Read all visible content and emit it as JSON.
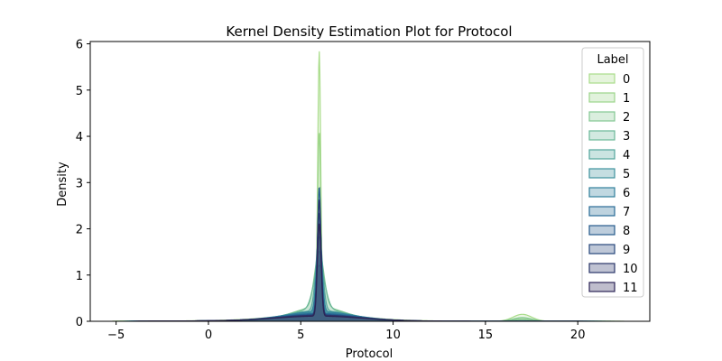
{
  "chart_data": {
    "type": "area",
    "title": "Kernel Density Estimation Plot for Protocol",
    "xlabel": "Protocol",
    "ylabel": "Density",
    "xlim": [
      -6.4,
      23.9
    ],
    "ylim": [
      0,
      6.05
    ],
    "xticks": [
      -5,
      0,
      5,
      10,
      15,
      20
    ],
    "yticks": [
      0,
      1,
      2,
      3,
      4,
      5,
      6
    ],
    "legend": {
      "title": "Label",
      "placement": "top-right"
    },
    "series": [
      {
        "name": "0",
        "color": "#a9dc8a",
        "peak": 5.73,
        "spike_width": 0.08,
        "broad_amp": 0.1,
        "broad_sigma": 2.6,
        "tcp": 0.15,
        "range": [
          -5.2,
          22.5
        ]
      },
      {
        "name": "1",
        "color": "#9bd48a",
        "peak": 3.95,
        "spike_width": 0.09,
        "broad_amp": 0.14,
        "broad_sigma": 2.3,
        "tcp": 0.05,
        "range": [
          -5.0,
          22.3
        ]
      },
      {
        "name": "2",
        "color": "#83c793",
        "peak": 1.2,
        "spike_width": 0.25,
        "broad_amp": 0.3,
        "broad_sigma": 1.4,
        "tcp": 0.08,
        "range": [
          -4.8,
          22.0
        ]
      },
      {
        "name": "3",
        "color": "#69b797",
        "peak": 0.95,
        "spike_width": 0.3,
        "broad_amp": 0.25,
        "broad_sigma": 1.6,
        "tcp": 0.02,
        "range": [
          -4.6,
          21.8
        ]
      },
      {
        "name": "4",
        "color": "#52a59b",
        "peak": 1.6,
        "spike_width": 0.18,
        "broad_amp": 0.22,
        "broad_sigma": 1.7,
        "tcp": 0.0,
        "range": [
          -4.5,
          21.5
        ]
      },
      {
        "name": "5",
        "color": "#3e929d",
        "peak": 2.1,
        "spike_width": 0.12,
        "broad_amp": 0.18,
        "broad_sigma": 2.0,
        "tcp": 0.0,
        "range": [
          -4.4,
          21.3
        ]
      },
      {
        "name": "6",
        "color": "#307f9b",
        "peak": 1.8,
        "spike_width": 0.14,
        "broad_amp": 0.2,
        "broad_sigma": 1.8,
        "tcp": 0.0,
        "range": [
          -4.3,
          21.1
        ]
      },
      {
        "name": "7",
        "color": "#286c96",
        "peak": 2.4,
        "spike_width": 0.1,
        "broad_amp": 0.16,
        "broad_sigma": 2.0,
        "tcp": 0.0,
        "range": [
          -4.2,
          20.9
        ]
      },
      {
        "name": "8",
        "color": "#255a8c",
        "peak": 2.76,
        "spike_width": 0.09,
        "broad_amp": 0.14,
        "broad_sigma": 2.1,
        "tcp": 0.0,
        "range": [
          -4.1,
          20.7
        ]
      },
      {
        "name": "9",
        "color": "#27467c",
        "peak": 2.2,
        "spike_width": 0.11,
        "broad_amp": 0.12,
        "broad_sigma": 2.2,
        "tcp": 0.0,
        "range": [
          -4.0,
          20.5
        ]
      },
      {
        "name": "10",
        "color": "#2a3569",
        "peak": 2.5,
        "spike_width": 0.1,
        "broad_amp": 0.12,
        "broad_sigma": 2.2,
        "tcp": 0.0,
        "range": [
          -3.9,
          20.3
        ]
      },
      {
        "name": "11",
        "color": "#2c2456",
        "peak": 2.0,
        "spike_width": 0.1,
        "broad_amp": 0.1,
        "broad_sigma": 2.3,
        "tcp": 0.0,
        "range": [
          -3.8,
          20.1
        ]
      }
    ]
  }
}
